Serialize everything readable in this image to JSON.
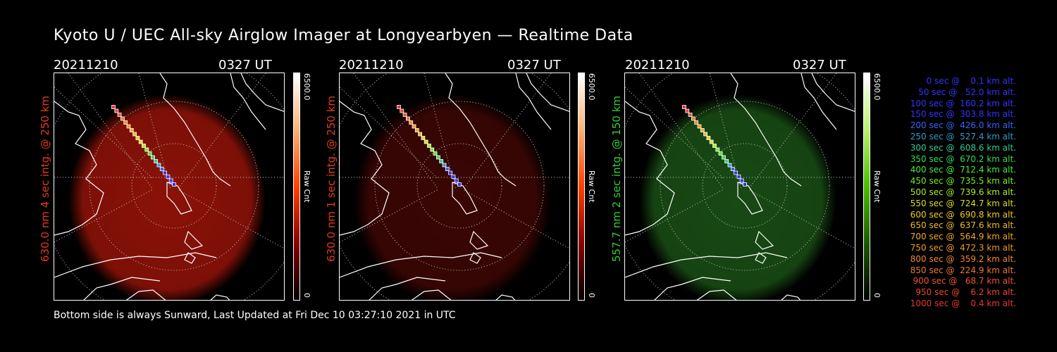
{
  "title": "Kyoto U / UEC All-sky Airglow Imager at Longyearbyen — Realtime Data",
  "panels": [
    {
      "date": "20211210",
      "time": "0327 UT",
      "ylabel": "630.0 nm 4 sec intg. @ 250 km",
      "label_color": "#e03a20",
      "glow": "#8a1208",
      "cbar_max": "6500.0",
      "cbar_min": "0",
      "cbar_unit": "Raw Cnt",
      "cbar_colors": [
        "#000000",
        "#8a0000",
        "#ff4000",
        "#ffb070",
        "#ffffff"
      ]
    },
    {
      "date": "20211210",
      "time": "0327 UT",
      "ylabel": "630.0 nm 1 sec intg. @ 250 km",
      "label_color": "#e03a20",
      "glow": "#3a0604",
      "cbar_max": "6500.0",
      "cbar_min": "0",
      "cbar_unit": "Raw Cnt",
      "cbar_colors": [
        "#000000",
        "#8a0000",
        "#ff4000",
        "#ffb070",
        "#ffffff"
      ]
    },
    {
      "date": "20211210",
      "time": "0327 UT",
      "ylabel": "557.7 nm 2 sec intg. @ 150 km",
      "label_color": "#33cc33",
      "glow": "#184a14",
      "cbar_max": "6500.0",
      "cbar_min": "0",
      "cbar_unit": "Raw Cnt",
      "cbar_colors": [
        "#000000",
        "#1a5a00",
        "#4cbc00",
        "#b8f070",
        "#ffffff"
      ]
    }
  ],
  "footer": "Bottom side is always Sunward, Last Updated at Fri Dec 10 03:27:10 2021 in UTC",
  "legend": [
    {
      "text": "   0 sec @    0.1 km alt.",
      "color": "#3333ff"
    },
    {
      "text": "  50 sec @   52.0 km alt.",
      "color": "#3333ff"
    },
    {
      "text": " 100 sec @  160.2 km alt.",
      "color": "#3333ff"
    },
    {
      "text": " 150 sec @  303.8 km alt.",
      "color": "#3333ff"
    },
    {
      "text": " 200 sec @  426.0 km alt.",
      "color": "#3366ff"
    },
    {
      "text": " 250 sec @  527.4 km alt.",
      "color": "#3399cc"
    },
    {
      "text": " 300 sec @  608.6 km alt.",
      "color": "#33cc99"
    },
    {
      "text": " 350 sec @  670.2 km alt.",
      "color": "#33dd55"
    },
    {
      "text": " 400 sec @  712.4 km alt.",
      "color": "#44ee33"
    },
    {
      "text": " 450 sec @  735.5 km alt.",
      "color": "#77ee22"
    },
    {
      "text": " 500 sec @  739.6 km alt.",
      "color": "#aaee22"
    },
    {
      "text": " 550 sec @  724.7 km alt.",
      "color": "#dddd22"
    },
    {
      "text": " 600 sec @  690.8 km alt.",
      "color": "#eecc22"
    },
    {
      "text": " 650 sec @  637.6 km alt.",
      "color": "#eebb22"
    },
    {
      "text": " 700 sec @  564.9 km alt.",
      "color": "#eeaa22"
    },
    {
      "text": " 750 sec @  472.3 km alt.",
      "color": "#ee9922"
    },
    {
      "text": " 800 sec @  359.2 km alt.",
      "color": "#ee8833"
    },
    {
      "text": " 850 sec @  224.9 km alt.",
      "color": "#ee7733"
    },
    {
      "text": " 900 sec @   68.7 km alt.",
      "color": "#ee5533"
    },
    {
      "text": " 950 sec @    6.2 km alt.",
      "color": "#ee4433"
    },
    {
      "text": "1000 sec @    0.4 km alt.",
      "color": "#ee3333"
    }
  ]
}
